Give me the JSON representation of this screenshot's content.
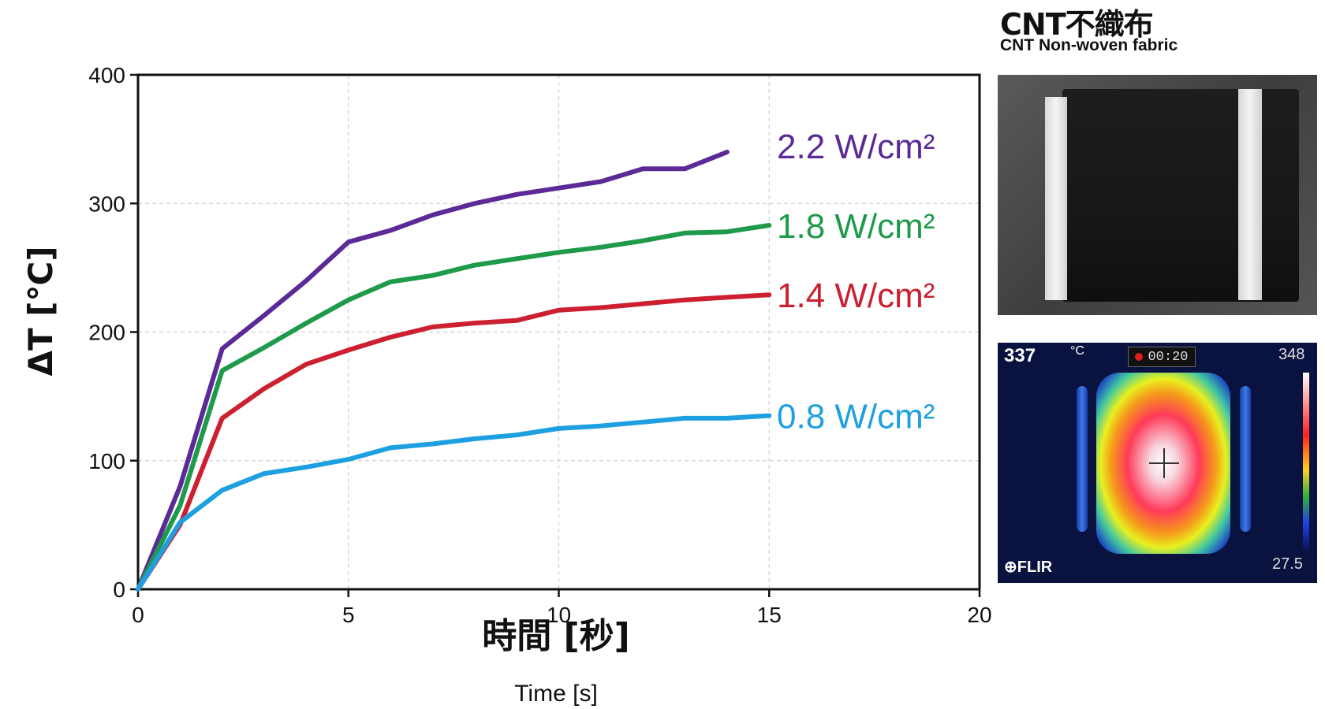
{
  "chart_data": {
    "type": "line",
    "title": "",
    "xlabel": "時間 [秒]",
    "xlabel_en": "Time [s]",
    "ylabel": "ΔT [℃]",
    "xlim": [
      0,
      20
    ],
    "ylim": [
      0,
      400
    ],
    "xticks": [
      0,
      5,
      10,
      15,
      20
    ],
    "yticks": [
      0,
      100,
      200,
      300,
      400
    ],
    "grid": true,
    "legend": "inline-right",
    "series": [
      {
        "name": "2.2 W/cm²",
        "color": "#5b2a96",
        "x": [
          0,
          1,
          2,
          3,
          4,
          5,
          6,
          7,
          8,
          9,
          10,
          11,
          12,
          13,
          14
        ],
        "y": [
          0,
          80,
          187,
          213,
          240,
          270,
          279,
          291,
          300,
          307,
          312,
          317,
          327,
          327,
          340
        ],
        "label_y": 345
      },
      {
        "name": "1.8 W/cm²",
        "color": "#1e9a4a",
        "x": [
          0,
          1,
          2,
          3,
          4,
          5,
          6,
          7,
          8,
          9,
          10,
          11,
          12,
          13,
          14,
          15
        ],
        "y": [
          0,
          65,
          170,
          188,
          207,
          225,
          239,
          244,
          252,
          257,
          262,
          266,
          271,
          277,
          278,
          283
        ],
        "label_y": 283
      },
      {
        "name": "1.4 W/cm²",
        "color": "#cc2030",
        "x": [
          0,
          1,
          2,
          3,
          4,
          5,
          6,
          7,
          8,
          9,
          10,
          11,
          12,
          13,
          14,
          15
        ],
        "y": [
          0,
          50,
          133,
          156,
          175,
          186,
          196,
          204,
          207,
          209,
          217,
          219,
          222,
          225,
          227,
          229
        ],
        "label_y": 229
      },
      {
        "name": "0.8 W/cm²",
        "color": "#1ea0e0",
        "x": [
          0,
          1,
          2,
          3,
          4,
          5,
          6,
          7,
          8,
          9,
          10,
          11,
          12,
          13,
          14,
          15
        ],
        "y": [
          0,
          52,
          77,
          90,
          95,
          101,
          110,
          113,
          117,
          120,
          125,
          127,
          130,
          133,
          133,
          135
        ],
        "label_y": 135
      }
    ]
  },
  "side": {
    "title": "CNT不織布",
    "subtitle": "CNT Non-woven fabric",
    "thermal": {
      "readout": "337",
      "unit": "°C",
      "timer": "00:20",
      "scale_max": "348",
      "scale_min": "27.5",
      "logo": "⊕FLIR"
    }
  }
}
